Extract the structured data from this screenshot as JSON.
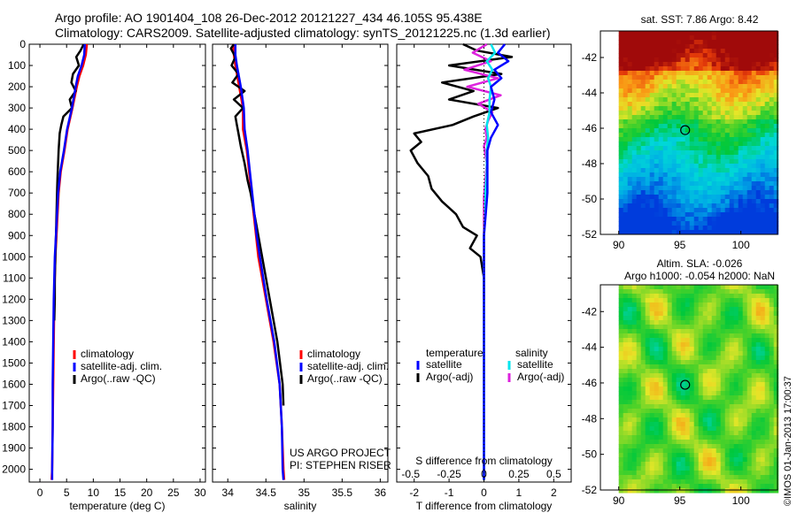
{
  "header": {
    "title_line1": "Argo profile: AO 1901404_108 26-Dec-2012 20121227_434 46.105S 95.438E",
    "title_line2": "Climatology: CARS2009. Satellite-adjusted climatology: synTS_20121225.nc (1.3d earlier)"
  },
  "depth_ticks": [
    0,
    100,
    200,
    300,
    400,
    500,
    600,
    700,
    800,
    900,
    1000,
    1100,
    1200,
    1300,
    1400,
    1500,
    1600,
    1700,
    1800,
    1900,
    2000
  ],
  "colors": {
    "climatology": "#ff0000",
    "satellite": "#0000ff",
    "argo": "#000000",
    "salinity_satellite": "#00e5ee",
    "salinity_argo": "#dd22dd"
  },
  "chart_data": [
    {
      "type": "line",
      "xlabel": "temperature (deg C)",
      "ylabel": "",
      "xlim": [
        -2,
        31
      ],
      "ylim": [
        2060,
        0
      ],
      "xticks": [
        0,
        5,
        10,
        15,
        20,
        25,
        30
      ],
      "legend": {
        "placement": "lower-center",
        "entries": [
          "climatology",
          "satellite-adj. clim.",
          "Argo(..raw -QC)"
        ]
      },
      "series": [
        {
          "name": "climatology",
          "depth": [
            0,
            50,
            100,
            150,
            200,
            300,
            400,
            500,
            600,
            700,
            800,
            900,
            1000,
            1200,
            1400,
            1600,
            1800,
            2000,
            2050
          ],
          "values": [
            8.8,
            8.6,
            8.1,
            7.4,
            6.9,
            6.1,
            5.2,
            4.6,
            3.9,
            3.5,
            3.3,
            3.1,
            2.9,
            2.7,
            2.6,
            2.5,
            2.4,
            2.3,
            2.2
          ]
        },
        {
          "name": "satellite-adj. clim.",
          "depth": [
            0,
            50,
            100,
            150,
            200,
            300,
            400,
            500,
            600,
            700,
            800,
            900,
            1000,
            1200,
            1400,
            1600,
            1800,
            2000,
            2050
          ],
          "values": [
            8.4,
            8.3,
            7.8,
            7.1,
            6.7,
            6.0,
            5.1,
            4.5,
            3.8,
            3.4,
            3.2,
            3.0,
            2.8,
            2.6,
            2.5,
            2.4,
            2.4,
            2.3,
            2.3
          ]
        },
        {
          "name": "Argo(..raw -QC)",
          "depth": [
            0,
            30,
            60,
            100,
            140,
            180,
            220,
            260,
            300,
            340,
            380,
            420,
            460,
            500,
            560,
            620,
            700,
            800,
            900,
            1000,
            1100,
            1200,
            1300
          ],
          "values": [
            8.2,
            7.6,
            6.8,
            7.3,
            6.2,
            5.9,
            6.7,
            5.6,
            6.0,
            4.4,
            4.0,
            3.7,
            3.6,
            3.5,
            3.4,
            3.3,
            3.2,
            3.1,
            3.0,
            2.9,
            2.8,
            2.8,
            2.7
          ]
        }
      ]
    },
    {
      "type": "line",
      "xlabel": "salinity",
      "ylabel": "",
      "xlim": [
        33.8,
        36.1
      ],
      "ylim": [
        2060,
        0
      ],
      "xticks": [
        34,
        34.5,
        35,
        35.5,
        36
      ],
      "legend": {
        "placement": "lower-center",
        "entries": [
          "climatology",
          "satellite-adj. clim.",
          "Argo(..raw -QC)"
        ]
      },
      "annotation": [
        "US ARGO PROJECT",
        "PI: STEPHEN RISER"
      ],
      "series": [
        {
          "name": "climatology",
          "depth": [
            0,
            50,
            100,
            200,
            300,
            400,
            500,
            600,
            700,
            800,
            900,
            1000,
            1200,
            1400,
            1600,
            1800,
            2000,
            2050
          ],
          "values": [
            34.07,
            34.08,
            34.1,
            34.15,
            34.2,
            34.2,
            34.25,
            34.28,
            34.31,
            34.34,
            34.37,
            34.4,
            34.5,
            34.6,
            34.68,
            34.71,
            34.73,
            34.74
          ]
        },
        {
          "name": "satellite-adj. clim.",
          "depth": [
            0,
            50,
            100,
            200,
            300,
            400,
            500,
            600,
            700,
            800,
            900,
            1000,
            1200,
            1400,
            1600,
            1800,
            2000,
            2050
          ],
          "values": [
            34.1,
            34.1,
            34.12,
            34.17,
            34.21,
            34.22,
            34.26,
            34.29,
            34.32,
            34.35,
            34.38,
            34.42,
            34.51,
            34.61,
            34.68,
            34.71,
            34.72,
            34.73
          ]
        },
        {
          "name": "Argo(..raw -QC)",
          "depth": [
            0,
            20,
            60,
            100,
            140,
            180,
            220,
            260,
            300,
            340,
            380,
            420,
            480,
            560,
            640,
            700,
            800,
            900,
            1000,
            1200,
            1400,
            1600,
            1700
          ],
          "values": [
            34.08,
            34.04,
            34.1,
            34.05,
            34.14,
            34.06,
            34.22,
            34.08,
            34.2,
            34.1,
            34.12,
            34.14,
            34.17,
            34.22,
            34.26,
            34.3,
            34.35,
            34.4,
            34.45,
            34.55,
            34.65,
            34.72,
            34.73
          ]
        }
      ]
    },
    {
      "type": "line",
      "xlabel": "T difference from climatology",
      "x2label": "S difference from climatology",
      "xlim": [
        -2.5,
        2.5
      ],
      "ylim": [
        2060,
        0
      ],
      "xticks": [
        -2,
        -1,
        0,
        1,
        2
      ],
      "x2ticks": [
        "-0.5",
        "-0.25",
        "0",
        "0.25",
        "0.5"
      ],
      "legend": {
        "placement": "lower-center",
        "temperature_heading": "temperature",
        "salinity_heading": "salinity",
        "temperature_entries": [
          "satellite",
          "Argo(-adj)"
        ],
        "salinity_entries": [
          "satellite",
          "Argo(-adj)"
        ]
      },
      "series": [
        {
          "name": "temperature satellite",
          "depth": [
            0,
            40,
            80,
            120,
            160,
            200,
            260,
            320,
            380,
            440,
            500,
            600,
            700,
            800,
            900,
            1000,
            1200,
            1400,
            1600,
            1800,
            2000,
            2050
          ],
          "values": [
            0.6,
            0.4,
            0.7,
            0.3,
            0.5,
            0.2,
            0.3,
            0.2,
            0.4,
            0.2,
            0.1,
            0.1,
            0.1,
            0.05,
            0.0,
            0.0,
            0.0,
            0.0,
            0.0,
            0.0,
            0.0,
            0.0
          ]
        },
        {
          "name": "temperature Argo(-adj)",
          "depth": [
            0,
            30,
            60,
            100,
            140,
            180,
            220,
            260,
            300,
            340,
            380,
            420,
            460,
            500,
            560,
            620,
            680,
            740,
            800,
            860,
            900,
            960,
            1000,
            1100,
            1200
          ],
          "values": [
            -0.6,
            -0.2,
            0.8,
            -1.0,
            0.5,
            -1.2,
            -0.3,
            -1.0,
            0.4,
            -0.3,
            -0.9,
            -2.0,
            -1.8,
            -2.1,
            -1.9,
            -1.6,
            -1.5,
            -1.2,
            -0.8,
            -0.6,
            -0.2,
            -0.4,
            -0.1,
            0.0,
            0.0
          ]
        },
        {
          "name": "salinity satellite",
          "depth": [
            0,
            40,
            80,
            120,
            160,
            200,
            260,
            320,
            380,
            440,
            500,
            600,
            700,
            800,
            900,
            1000,
            1200,
            1400,
            1600,
            1800,
            2000,
            2050
          ],
          "values": [
            0.05,
            0.08,
            0.02,
            0.06,
            0.03,
            0.05,
            0.04,
            0.04,
            0.02,
            0.03,
            0.02,
            0.02,
            0.01,
            0.01,
            0.0,
            0.0,
            0.0,
            0.0,
            0.0,
            0.0,
            0.0,
            0.0
          ]
        },
        {
          "name": "salinity Argo(-adj)",
          "depth": [
            0,
            40,
            80,
            120,
            160,
            200,
            240,
            280,
            320,
            360,
            400,
            440,
            480,
            560,
            640,
            720,
            800,
            900,
            1000,
            1100
          ],
          "values": [
            0.02,
            -0.08,
            0.05,
            -0.14,
            0.1,
            -0.12,
            0.12,
            -0.04,
            0.06,
            0.03,
            0.01,
            0.02,
            0.0,
            0.02,
            0.01,
            0.0,
            0.0,
            0.0,
            0.0,
            0.0
          ]
        }
      ]
    },
    {
      "type": "heatmap",
      "title": "sat. SST: 7.86  Argo: 8.42",
      "xlim": [
        88.5,
        103
      ],
      "ylim": [
        -52,
        -40.5
      ],
      "xticks": [
        90,
        95,
        100
      ],
      "yticks": [
        -52,
        -50,
        -48,
        -46,
        -44,
        -42
      ],
      "marker": {
        "x": 95.438,
        "y": -46.105
      }
    },
    {
      "type": "heatmap",
      "title": [
        "Altim. SLA: -0.026",
        "Argo h1000: -0.054 h2000: NaN"
      ],
      "xlim": [
        88.5,
        103
      ],
      "ylim": [
        -52,
        -40.5
      ],
      "xticks": [
        90,
        95,
        100
      ],
      "yticks": [
        -52,
        -50,
        -48,
        -46,
        -44,
        -42
      ],
      "marker": {
        "x": 95.438,
        "y": -46.105
      },
      "watermark": "©IMOS 01-Jan-2013 17:00:37"
    }
  ]
}
